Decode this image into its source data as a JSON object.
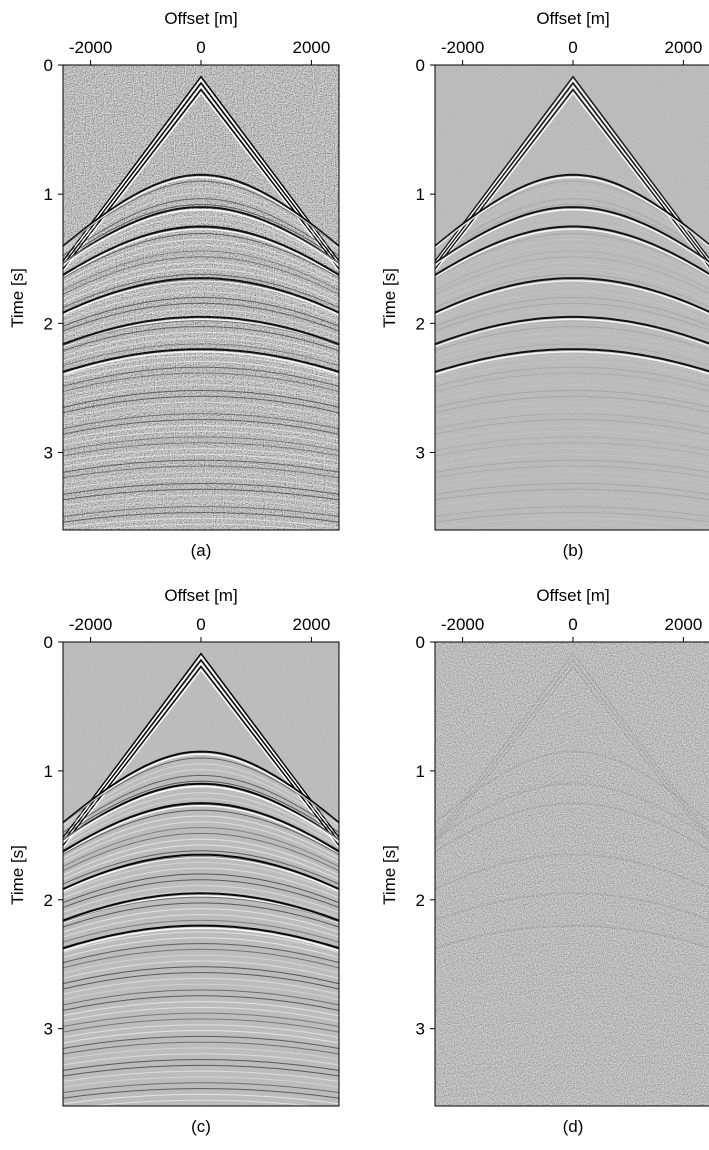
{
  "chart_data": [
    {
      "type": "seismic",
      "xlabel": "Offset [m]",
      "ylabel": "Time [s]",
      "caption": "(a)",
      "xlim": [
        -2500,
        2500
      ],
      "ylim": [
        0,
        3.6
      ],
      "xticks": [
        -2000,
        0,
        2000
      ],
      "yticks": [
        0,
        1,
        2,
        3
      ]
    },
    {
      "type": "seismic",
      "xlabel": "Offset [m]",
      "ylabel": "Time [s]",
      "caption": "(b)",
      "xlim": [
        -2500,
        2500
      ],
      "ylim": [
        0,
        3.6
      ],
      "xticks": [
        -2000,
        0,
        2000
      ],
      "yticks": [
        0,
        1,
        2,
        3
      ]
    },
    {
      "type": "seismic",
      "xlabel": "Offset [m]",
      "ylabel": "Time [s]",
      "caption": "(c)",
      "xlim": [
        -2500,
        2500
      ],
      "ylim": [
        0,
        3.6
      ],
      "xticks": [
        -2000,
        0,
        2000
      ],
      "yticks": [
        0,
        1,
        2,
        3
      ]
    },
    {
      "type": "seismic",
      "xlabel": "Offset [m]",
      "ylabel": "Time [s]",
      "caption": "(d)",
      "xlim": [
        -2500,
        2500
      ],
      "ylim": [
        0,
        3.6
      ],
      "xticks": [
        -2000,
        0,
        2000
      ],
      "yticks": [
        0,
        1,
        2,
        3
      ]
    }
  ]
}
